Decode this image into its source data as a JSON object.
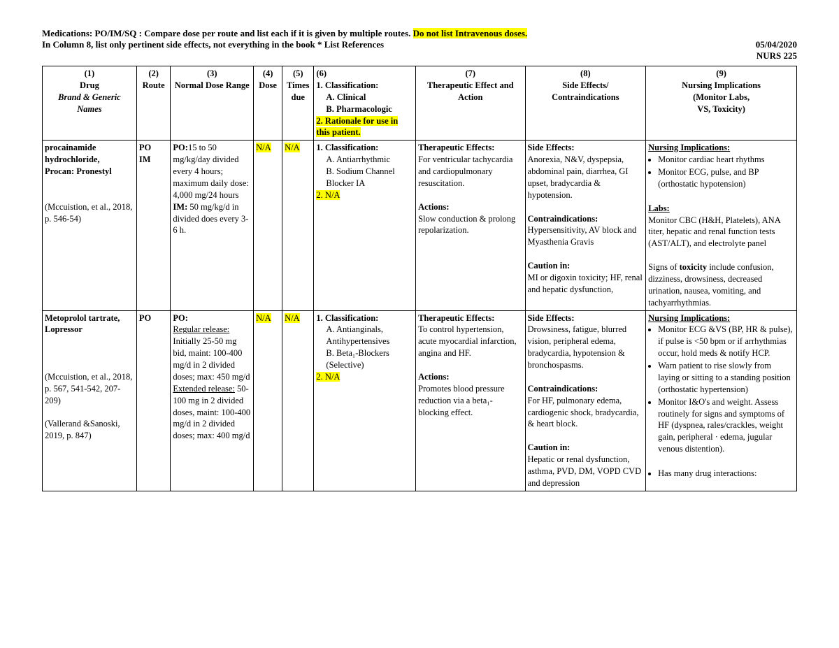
{
  "header": {
    "line1_prefix": "Medications:  PO/IM/SQ : Compare dose per route and list each if it is given by multiple routes. ",
    "line1_highlight": "Do not list Intravenous doses.",
    "line2_left": "In Column 8, list only pertinent side effects, not everything in the book      * List References",
    "date": "05/04/2020",
    "course": "NURS 225"
  },
  "columns": {
    "c1_num": "(1)",
    "c1a": "Drug",
    "c1b": "Brand & Generic Names",
    "c2_num": "(2)",
    "c2": "Route",
    "c3_num": "(3)",
    "c3": "Normal Dose Range",
    "c4_num": "(4)",
    "c4": "Dose",
    "c5_num": "(5)",
    "c5": "Times due",
    "c6_num": "(6)",
    "c6_l1": "1. Classification:",
    "c6_l1a": "A. Clinical",
    "c6_l1b": "B. Pharmacologic",
    "c6_l2": "2. Rationale for use in this patient.",
    "c7_num": "(7)",
    "c7": "Therapeutic Effect and Action",
    "c8_num": "(8)",
    "c8": "Side Effects/ Contraindications",
    "c9_num": "(9)",
    "c9a": "Nursing Implications",
    "c9b": "(Monitor Labs,",
    "c9c": "VS, Toxicity)"
  },
  "widths": [
    "12.5%",
    "4.5%",
    "11%",
    "3.8%",
    "4.2%",
    "13.5%",
    "14.5%",
    "16%",
    "20%"
  ],
  "row1": {
    "drug_l1": "procainamide hydrochloride,",
    "drug_l2": "Procan: Pronestyl",
    "ref": "(Mccuistion, et al., 2018, p. 546-54)",
    "route_l1": "PO",
    "route_l2": "IM",
    "dose_po_label": "PO:",
    "dose_po": "15 to 50 mg/kg/day divided every 4 hours; maximum daily dose: 4,000 mg/24 hours",
    "dose_im_label": "IM:",
    "dose_im": " 50 mg/kg/d in divided does every 3-6 h.",
    "c4": "N/A",
    "c5": "N/A",
    "class_hdr": "1. Classification:",
    "class_a": "A. Antiarrhythmic",
    "class_b": "B. Sodium Channel Blocker IA",
    "class_2": "2. N/A",
    "te_hdr": "Therapeutic Effects:",
    "te_body": "For ventricular tachycardia and cardiopulmonary resuscitation.",
    "act_hdr": "Actions:",
    "act_body": "Slow conduction & prolong repolarization.",
    "se_hdr": "Side Effects:",
    "se_body": "Anorexia, N&V, dyspepsia, abdominal pain, diarrhea, GI upset, bradycardia & hypotension.",
    "ci_hdr": "Contraindications:",
    "ci_body": "Hypersensitivity, AV block and Myasthenia Gravis",
    "cau_hdr": "Caution in:",
    "cau_body": "MI or digoxin toxicity; HF, renal and hepatic dysfunction,",
    "ni_hdr": "Nursing Implications:",
    "ni_b1": "Monitor cardiac heart rhythms",
    "ni_b2": "Monitor ECG, pulse, and BP (orthostatic hypotension)",
    "labs_hdr": "Labs:",
    "labs_body": "Monitor CBC (H&H, Platelets), ANA titer, hepatic and renal function tests (AST/ALT), and electrolyte panel",
    "tox_pre": "Signs of ",
    "tox_bold": "toxicity",
    "tox_post": " include confusion, dizziness, drowsiness, decreased urination, nausea, vomiting, and tachyarrhythmias."
  },
  "row2": {
    "drug_l1": "Metoprolol tartrate, Lopressor",
    "ref1": "(Mccuistion, et al., 2018, p. 567, 541-542, 207-209)",
    "ref2": "(Vallerand &Sanoski, 2019, p. 847)",
    "route": "PO",
    "dose_po_label": "PO:",
    "reg_label": "Regular release:",
    "reg_body": " Initially 25-50 mg bid, maint: 100-400 mg/d in 2 divided doses; max: 450 mg/d",
    "ext_label": "Extended release:",
    "ext_body": " 50-100 mg in 2 divided doses, maint: 100-400 mg/d in 2 divided doses; max: 400 mg/d",
    "c4": "N/A",
    "c5": "N/A",
    "class_hdr": "1. Classification:",
    "class_a": "A. Antianginals, Antihypertensives",
    "class_b": "B. Beta₁-Blockers (Selective)",
    "class_2": "2. N/A",
    "te_hdr": "Therapeutic Effects:",
    "te_body": "To control hypertension, acute myocardial infarction, angina and HF.",
    "act_hdr": "Actions:",
    "act_body": "Promotes blood pressure reduction via a beta₁-blocking effect.",
    "se_hdr": "Side Effects:",
    "se_body": "Drowsiness, fatigue, blurred vision, peripheral edema, bradycardia, hypotension & bronchospasms.",
    "ci_hdr": "Contraindications:",
    "ci_body": "For HF, pulmonary edema, cardiogenic shock, bradycardia, & heart block.",
    "cau_hdr": "Caution in:",
    "cau_body": "Hepatic or renal dysfunction, asthma, PVD, DM, VOPD CVD and depression",
    "ni_hdr": "Nursing Implications:",
    "ni_b1": "Monitor ECG &VS (BP, HR & pulse), if pulse is <50 bpm or if arrhythmias occur, hold meds & notify HCP.",
    "ni_b2": "Warn patient to rise slowly from laying or sitting to a standing position (orthostatic hypertension)",
    "ni_b3": "Monitor I&O's and weight. Assess routinely for signs and symptoms of HF (dyspnea, rales/crackles, weight gain, peripheral · edema, jugular venous distention).",
    "ni_b4": "Has many drug interactions:"
  }
}
